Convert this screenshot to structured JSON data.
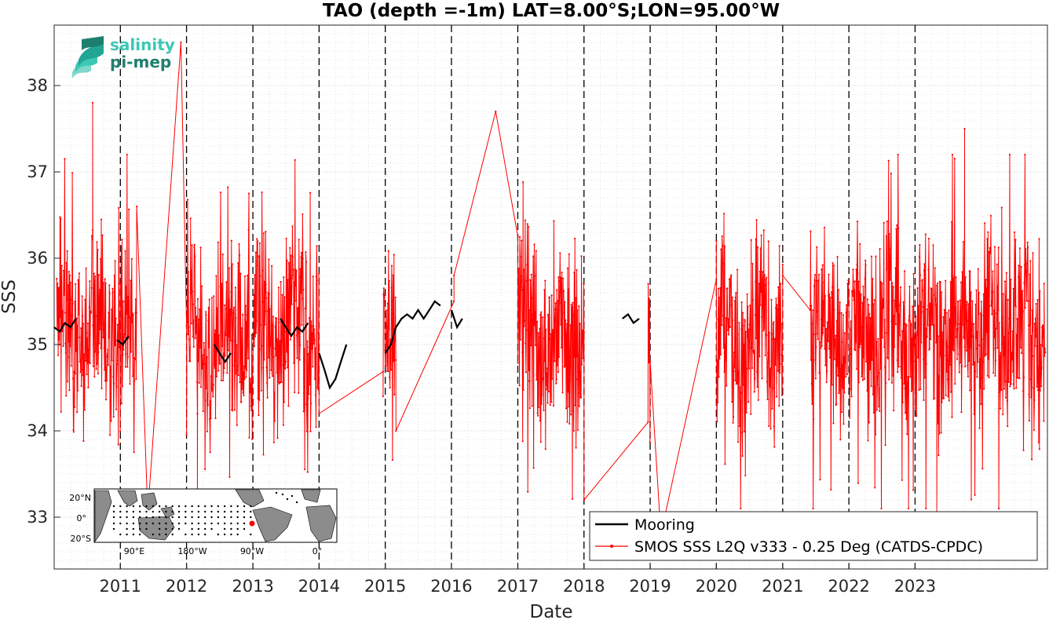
{
  "chart_data": {
    "type": "line",
    "title": "TAO (depth =-1m) LAT=8.00°S;LON=95.00°W",
    "xlabel": "Date",
    "ylabel": "SSS",
    "xlim": [
      "2010-01-01",
      "2024-12-31"
    ],
    "ylim": [
      32.4,
      38.7
    ],
    "x_tick_labels": [
      "2011",
      "2012",
      "2013",
      "2014",
      "2015",
      "2016",
      "2017",
      "2018",
      "2019",
      "2020",
      "2021",
      "2022",
      "2023"
    ],
    "y_tick_labels": [
      "33",
      "34",
      "35",
      "36",
      "37",
      "38"
    ],
    "y_ticks": [
      33,
      34,
      35,
      36,
      37,
      38
    ],
    "vertical_year_lines": [
      "2011",
      "2012",
      "2013",
      "2014",
      "2015",
      "2016",
      "2017",
      "2018",
      "2019",
      "2020",
      "2021",
      "2022",
      "2023"
    ],
    "grid": true,
    "legend_location": "bottom-right",
    "series": [
      {
        "name": "Mooring",
        "color": "#000000",
        "segments": [
          {
            "x": [
              "2010-01-01",
              "2010-02-01",
              "2010-03-01",
              "2010-04-01",
              "2010-05-01"
            ],
            "y": [
              35.2,
              35.15,
              35.25,
              35.2,
              35.3
            ]
          },
          {
            "x": [
              "2010-12-15",
              "2011-01-15",
              "2011-02-15"
            ],
            "y": [
              35.05,
              35.0,
              35.1
            ]
          },
          {
            "x": [
              "2012-06-01",
              "2012-07-01",
              "2012-08-01",
              "2012-09-01"
            ],
            "y": [
              35.0,
              34.9,
              34.8,
              34.9
            ]
          },
          {
            "x": [
              "2013-06-01",
              "2013-07-01",
              "2013-08-01",
              "2013-09-01",
              "2013-10-01",
              "2013-11-01"
            ],
            "y": [
              35.3,
              35.2,
              35.1,
              35.2,
              35.15,
              35.25
            ]
          },
          {
            "x": [
              "2014-01-01",
              "2014-02-01",
              "2014-03-01",
              "2014-04-01",
              "2014-05-01",
              "2014-06-01"
            ],
            "y": [
              34.9,
              34.7,
              34.5,
              34.6,
              34.8,
              35.0
            ]
          },
          {
            "x": [
              "2015-01-01",
              "2015-02-01",
              "2015-03-01",
              "2015-04-01",
              "2015-05-01",
              "2015-06-01",
              "2015-07-01",
              "2015-08-01",
              "2015-09-01",
              "2015-10-01",
              "2015-11-01"
            ],
            "y": [
              34.9,
              35.0,
              35.2,
              35.3,
              35.35,
              35.3,
              35.4,
              35.3,
              35.4,
              35.5,
              35.45
            ]
          },
          {
            "x": [
              "2016-01-01",
              "2016-02-01",
              "2016-03-01"
            ],
            "y": [
              35.4,
              35.2,
              35.3
            ]
          },
          {
            "x": [
              "2018-08-01",
              "2018-09-01",
              "2018-10-01",
              "2018-11-01"
            ],
            "y": [
              35.3,
              35.35,
              35.25,
              35.3
            ]
          }
        ]
      },
      {
        "name": "SMOS SSS L2Q v333 - 0.25 Deg (CATDS-CPDC)",
        "color": "#ff0000",
        "start": "2010-01-15",
        "end": "2024-12-20",
        "mean": 35.15,
        "typical_min": 33.5,
        "typical_max": 36.9,
        "extreme_points": [
          {
            "x": "2010-08-01",
            "y": 37.8
          },
          {
            "x": "2011-12-01",
            "y": 38.5
          },
          {
            "x": "2011-06-01",
            "y": 33.05
          },
          {
            "x": "2012-03-01",
            "y": 33.1
          },
          {
            "x": "2016-09-01",
            "y": 37.7
          },
          {
            "x": "2019-03-01",
            "y": 32.8
          },
          {
            "x": "2023-05-01",
            "y": 33.0
          },
          {
            "x": "2023-10-01",
            "y": 37.5
          }
        ],
        "gaps": [
          {
            "from": {
              "x": "2011-04-01",
              "y": 36.6
            },
            "to": {
              "x": "2012-01-01",
              "y": 33.95
            }
          },
          {
            "from": {
              "x": "2014-01-01",
              "y": 34.2
            },
            "to": {
              "x": "2014-12-20",
              "y": 34.4
            }
          },
          {
            "from": {
              "x": "2015-03-01",
              "y": 34.0
            },
            "to": {
              "x": "2016-01-15",
              "y": 35.5
            }
          },
          {
            "from": {
              "x": "2016-01-15",
              "y": 35.8
            },
            "to": {
              "x": "2017-01-01",
              "y": 36.25
            }
          },
          {
            "from": {
              "x": "2018-01-01",
              "y": 33.2
            },
            "to": {
              "x": "2018-12-20",
              "y": 34.1
            }
          },
          {
            "from": {
              "x": "2019-01-01",
              "y": 34.8
            },
            "to": {
              "x": "2020-01-01",
              "y": 36.2
            }
          },
          {
            "from": {
              "x": "2021-01-01",
              "y": 35.8
            },
            "to": {
              "x": "2021-06-01",
              "y": 35.4
            }
          }
        ]
      }
    ]
  },
  "logo": {
    "line1": "salinity",
    "line2": "pi-mep",
    "color_light": "#3cc8b4",
    "color_dark": "#1f7f6e"
  },
  "inset_map": {
    "lat_labels": [
      "20°N",
      "0°",
      "20°S"
    ],
    "lon_labels": [
      "90°E",
      "180°W",
      "90°W",
      "0°"
    ],
    "station_marker_color": "#ff0000"
  }
}
